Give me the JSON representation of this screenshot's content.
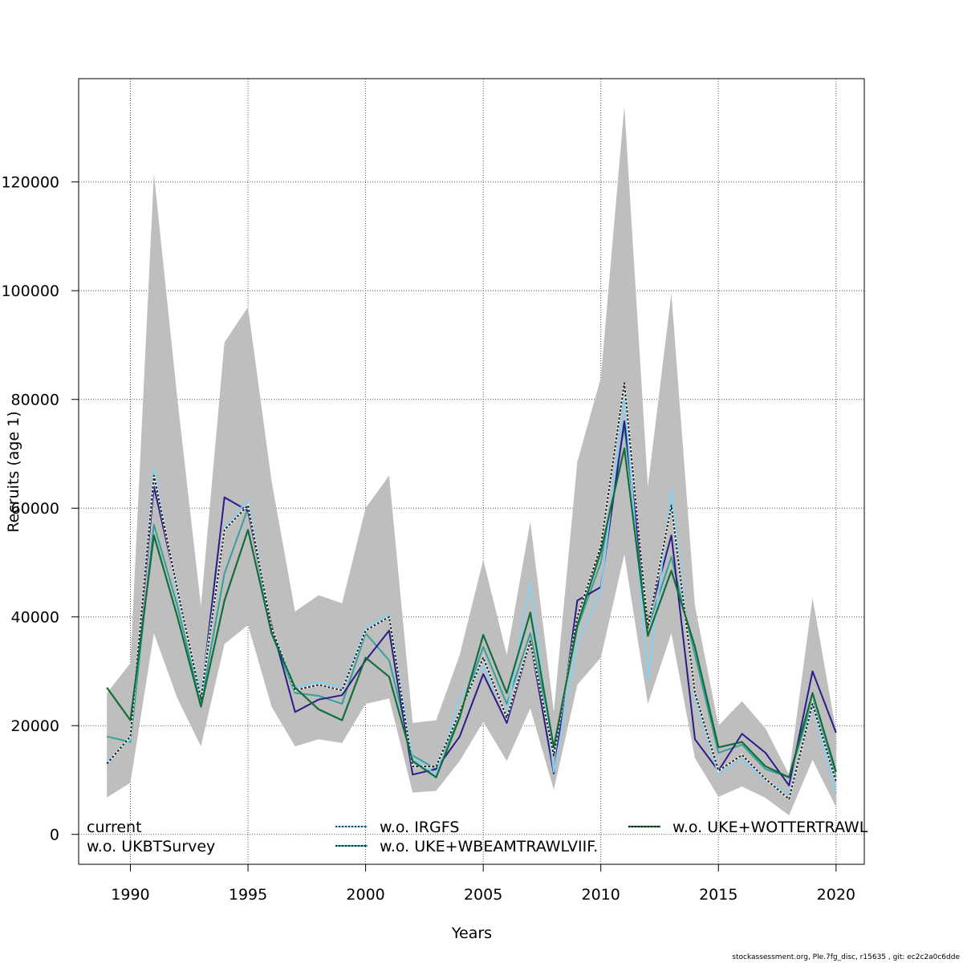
{
  "chart_data": {
    "type": "line",
    "title": "",
    "xlabel": "Years",
    "ylabel": "Recruits (age 1)",
    "xlim": [
      1987.8,
      2021.2
    ],
    "ylim": [
      -5500,
      139000
    ],
    "grid": true,
    "xticks": [
      1990,
      1995,
      2000,
      2005,
      2010,
      2015,
      2020
    ],
    "yticks": [
      0,
      20000,
      40000,
      60000,
      80000,
      100000,
      120000
    ],
    "x": [
      1989,
      1990,
      1991,
      1992,
      1993,
      1994,
      1995,
      1996,
      1997,
      1998,
      1999,
      2000,
      2001,
      2002,
      2003,
      2004,
      2005,
      2006,
      2007,
      2008,
      2009,
      2010,
      2011,
      2012,
      2013,
      2014,
      2015,
      2016,
      2017,
      2018,
      2019,
      2020
    ],
    "band": {
      "upper": [
        26000,
        31500,
        121500,
        80000,
        42000,
        90500,
        97000,
        65000,
        41000,
        44000,
        42500,
        60000,
        66000,
        20500,
        21000,
        33000,
        50500,
        33000,
        57500,
        22500,
        68500,
        84000,
        134000,
        64000,
        99500,
        42000,
        20000,
        24500,
        19500,
        11000,
        43500,
        19000
      ],
      "lower": [
        6800,
        9500,
        37000,
        25000,
        16200,
        35000,
        38500,
        23500,
        16200,
        17500,
        16800,
        24000,
        25000,
        7700,
        8000,
        13500,
        20700,
        13500,
        23200,
        8200,
        27500,
        32500,
        51500,
        24000,
        37000,
        14000,
        6900,
        8800,
        6700,
        3500,
        13700,
        5000
      ],
      "color": "#bebebe"
    },
    "series": [
      {
        "name": "current",
        "color": "#2b2b2b",
        "dash": "3,2",
        "width": 2,
        "values": [
          13000,
          18000,
          66000,
          45000,
          25000,
          56000,
          60500,
          38000,
          26500,
          27500,
          26500,
          37500,
          40000,
          12500,
          12500,
          22500,
          32500,
          21500,
          35500,
          14500,
          40000,
          53000,
          83000,
          38000,
          60500,
          26000,
          11700,
          14600,
          10200,
          6500,
          24000,
          9700
        ]
      },
      {
        "name": "w.o. UKBTSurvey",
        "color": "#2a1b87",
        "dash": "",
        "width": 2,
        "values": [
          13000,
          18000,
          64000,
          45000,
          25000,
          62000,
          59500,
          38500,
          22500,
          24800,
          25600,
          32000,
          37500,
          11000,
          12000,
          18000,
          29500,
          20500,
          35500,
          11200,
          43000,
          45500,
          76000,
          39000,
          55000,
          17500,
          11700,
          18500,
          15000,
          9000,
          30000,
          18700
        ]
      },
      {
        "name": "w.o. IRGFS",
        "color": "#86cfef",
        "dash": "",
        "width": 2,
        "values": [
          13500,
          17500,
          67500,
          44000,
          26000,
          56500,
          61500,
          38000,
          27000,
          28000,
          27000,
          38000,
          40500,
          14000,
          11000,
          25000,
          31000,
          22000,
          46500,
          11500,
          35000,
          45000,
          80500,
          28500,
          63500,
          25000,
          11000,
          13800,
          10000,
          7500,
          23500,
          7500
        ]
      },
      {
        "name": "w.o. UKE+WBEAMTRAWLVIIF.",
        "color": "#37a09a",
        "dash": "",
        "width": 2,
        "values": [
          18000,
          17000,
          57000,
          42000,
          24000,
          48000,
          60000,
          37000,
          26000,
          25500,
          24000,
          37000,
          32000,
          14500,
          12000,
          22000,
          34500,
          24000,
          37000,
          16000,
          38000,
          50000,
          75000,
          38000,
          51000,
          33000,
          15000,
          16500,
          12000,
          10500,
          24500,
          10500
        ]
      },
      {
        "name": "w.o. UKE+WOTTERTRAWL",
        "color": "#0f6e3c",
        "dash": "",
        "width": 2.2,
        "values": [
          27000,
          21000,
          55000,
          40000,
          23500,
          43000,
          56000,
          37000,
          27000,
          23000,
          21000,
          32500,
          29000,
          13500,
          10500,
          21500,
          36700,
          26000,
          40800,
          16000,
          38500,
          52000,
          71000,
          36500,
          48500,
          34500,
          16000,
          17000,
          12500,
          10500,
          26000,
          11500
        ]
      }
    ],
    "legend_placement": "bottom"
  },
  "footer_text": "stockassessment.org, Ple.7fg_disc, r15635 , git: ec2c2a0c6dde"
}
